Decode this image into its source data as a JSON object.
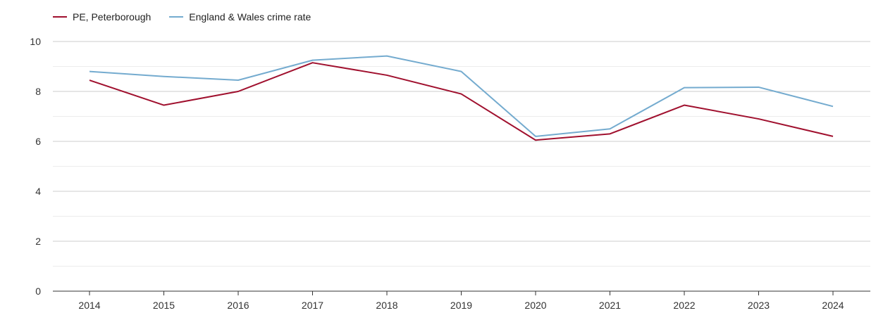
{
  "chart_data": {
    "type": "line",
    "title": "",
    "xlabel": "",
    "ylabel": "",
    "x": [
      "2014",
      "2015",
      "2016",
      "2017",
      "2018",
      "2019",
      "2020",
      "2021",
      "2022",
      "2023",
      "2024"
    ],
    "ylim": [
      0,
      10
    ],
    "yticks": [
      "0",
      "2",
      "4",
      "6",
      "8",
      "10"
    ],
    "grid": true,
    "legend_position": "top-left",
    "series": [
      {
        "name": "PE, Peterborough",
        "color": "#a0102e",
        "values": [
          8.45,
          7.45,
          8.0,
          9.15,
          8.65,
          7.9,
          6.05,
          6.3,
          7.45,
          6.9,
          6.2
        ]
      },
      {
        "name": "England & Wales crime rate",
        "color": "#74abcf",
        "values": [
          8.8,
          8.6,
          8.45,
          9.25,
          9.42,
          8.8,
          6.2,
          6.5,
          8.15,
          8.17,
          7.4
        ]
      }
    ]
  }
}
